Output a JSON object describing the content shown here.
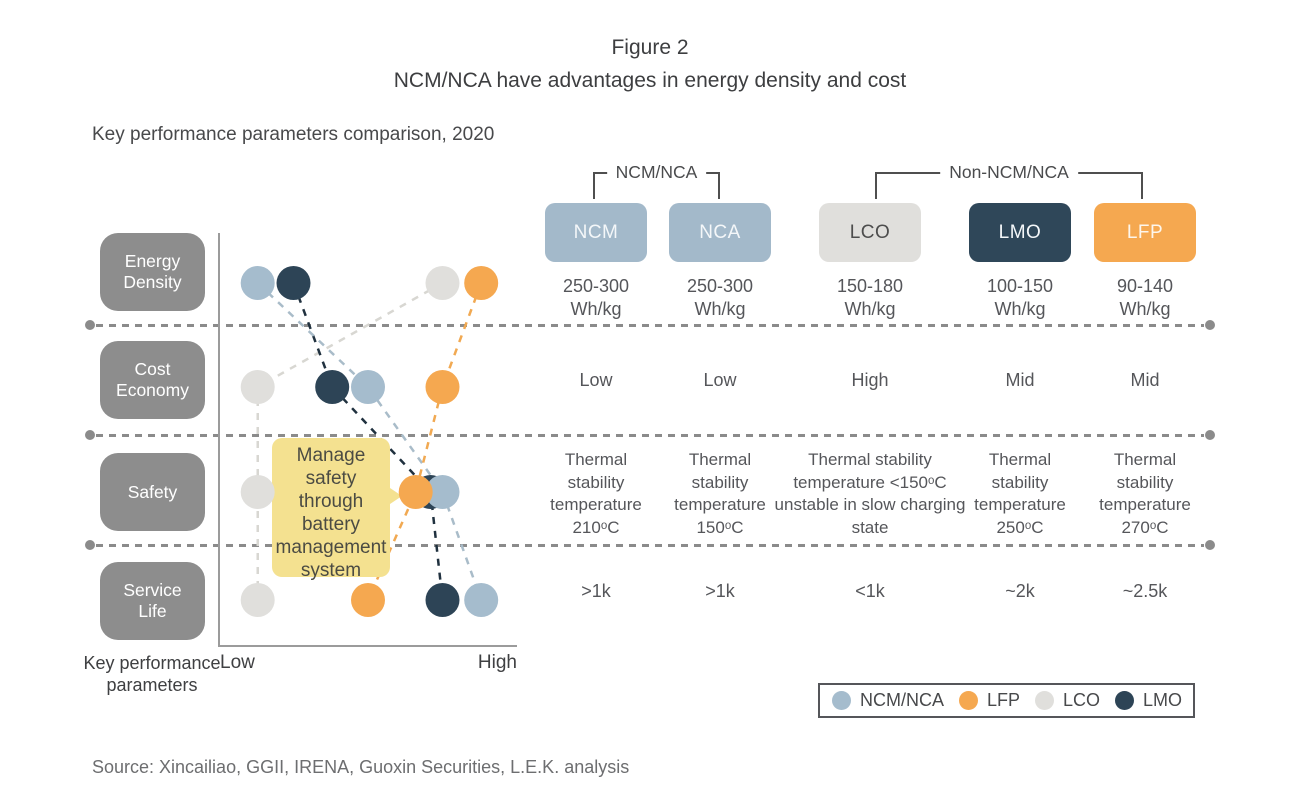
{
  "figure": {
    "label": "Figure 2",
    "title": "NCM/NCA have advantages in energy density and cost",
    "subtitle": "Key performance parameters comparison, 2020",
    "source": "Source: Xincailiao, GGII, IRENA, Guoxin Securities, L.E.K. analysis"
  },
  "groups": {
    "ncm": "NCM/NCA",
    "non_ncm": "Non-NCM/NCA"
  },
  "columns": [
    {
      "label": "NCM",
      "group": "NCM/NCA",
      "chip_bg": "#a3b9ca",
      "chip_text": "#f4f7f9",
      "energy_density": "250-300",
      "energy_unit": "Wh/kg",
      "cost_economy": "Low",
      "safety": "Thermal stability temperature 210ᵒC",
      "service_life": ">1k"
    },
    {
      "label": "NCA",
      "group": "NCM/NCA",
      "chip_bg": "#a3b9ca",
      "chip_text": "#f4f7f9",
      "energy_density": "250-300",
      "energy_unit": "Wh/kg",
      "cost_economy": "Low",
      "safety": "Thermal stability temperature 150ᵒC",
      "service_life": ">1k"
    },
    {
      "label": "LCO",
      "group": "Non-NCM/NCA",
      "chip_bg": "#e0dfdc",
      "chip_text": "#4d4d4d",
      "energy_density": "150-180",
      "energy_unit": "Wh/kg",
      "cost_economy": "High",
      "safety": "Thermal stability temperature <150ᵒC unstable in slow charging state",
      "service_life": "<1k"
    },
    {
      "label": "LMO",
      "group": "Non-NCM/NCA",
      "chip_bg": "#2f4759",
      "chip_text": "#f4f7f9",
      "energy_density": "100-150",
      "energy_unit": "Wh/kg",
      "cost_economy": "Mid",
      "safety": "Thermal stability temperature 250ᵒC",
      "service_life": "~2k"
    },
    {
      "label": "LFP",
      "group": "Non-NCM/NCA",
      "chip_bg": "#f5a850",
      "chip_text": "#fdf6ec",
      "energy_density": "90-140",
      "energy_unit": "Wh/kg",
      "cost_economy": "Mid",
      "safety": "Thermal stability temperature 270ᵒC",
      "service_life": "~2.5k"
    }
  ],
  "chart_data": {
    "type": "scatter",
    "title": "Key performance parameters comparison, 2020",
    "y_axis_title": "Key performance parameters",
    "y_categories": [
      "Energy Density",
      "Cost Economy",
      "Safety",
      "Service Life"
    ],
    "x_axis": {
      "min_label": "Low",
      "max_label": "High",
      "range": [
        0,
        100
      ]
    },
    "series": [
      {
        "name": "LCO",
        "color": "#e0dfdc",
        "line_color": "#d8d7d2",
        "values": [
          75,
          13,
          13,
          13
        ]
      },
      {
        "name": "LMO",
        "color": "#2d4456",
        "line_color": "#20313f",
        "values": [
          25,
          38,
          71,
          75
        ]
      },
      {
        "name": "NCM/NCA",
        "color": "#a5bccd",
        "line_color": "#a9bcc9",
        "values": [
          13,
          50,
          75,
          88
        ]
      },
      {
        "name": "LFP",
        "color": "#f5a850",
        "line_color": "#f1a952",
        "values": [
          88,
          75,
          66,
          50
        ]
      }
    ],
    "annotation": {
      "text": "Manage safety through battery management system",
      "target": "Safety"
    },
    "legend_order": [
      "NCM/NCA",
      "LFP",
      "LCO",
      "LMO"
    ],
    "legend_position": "bottom-right",
    "grid": "dashed horizontal separators between parameter rows"
  },
  "colors": {
    "accent_blue": "#a5bccd",
    "accent_orange": "#f5a850",
    "accent_gray": "#e0dfdc",
    "accent_navy": "#2d4456",
    "param_box": "#8d8d8d",
    "annotation_bg": "#f4e190",
    "separator": "#8b8b8b"
  }
}
